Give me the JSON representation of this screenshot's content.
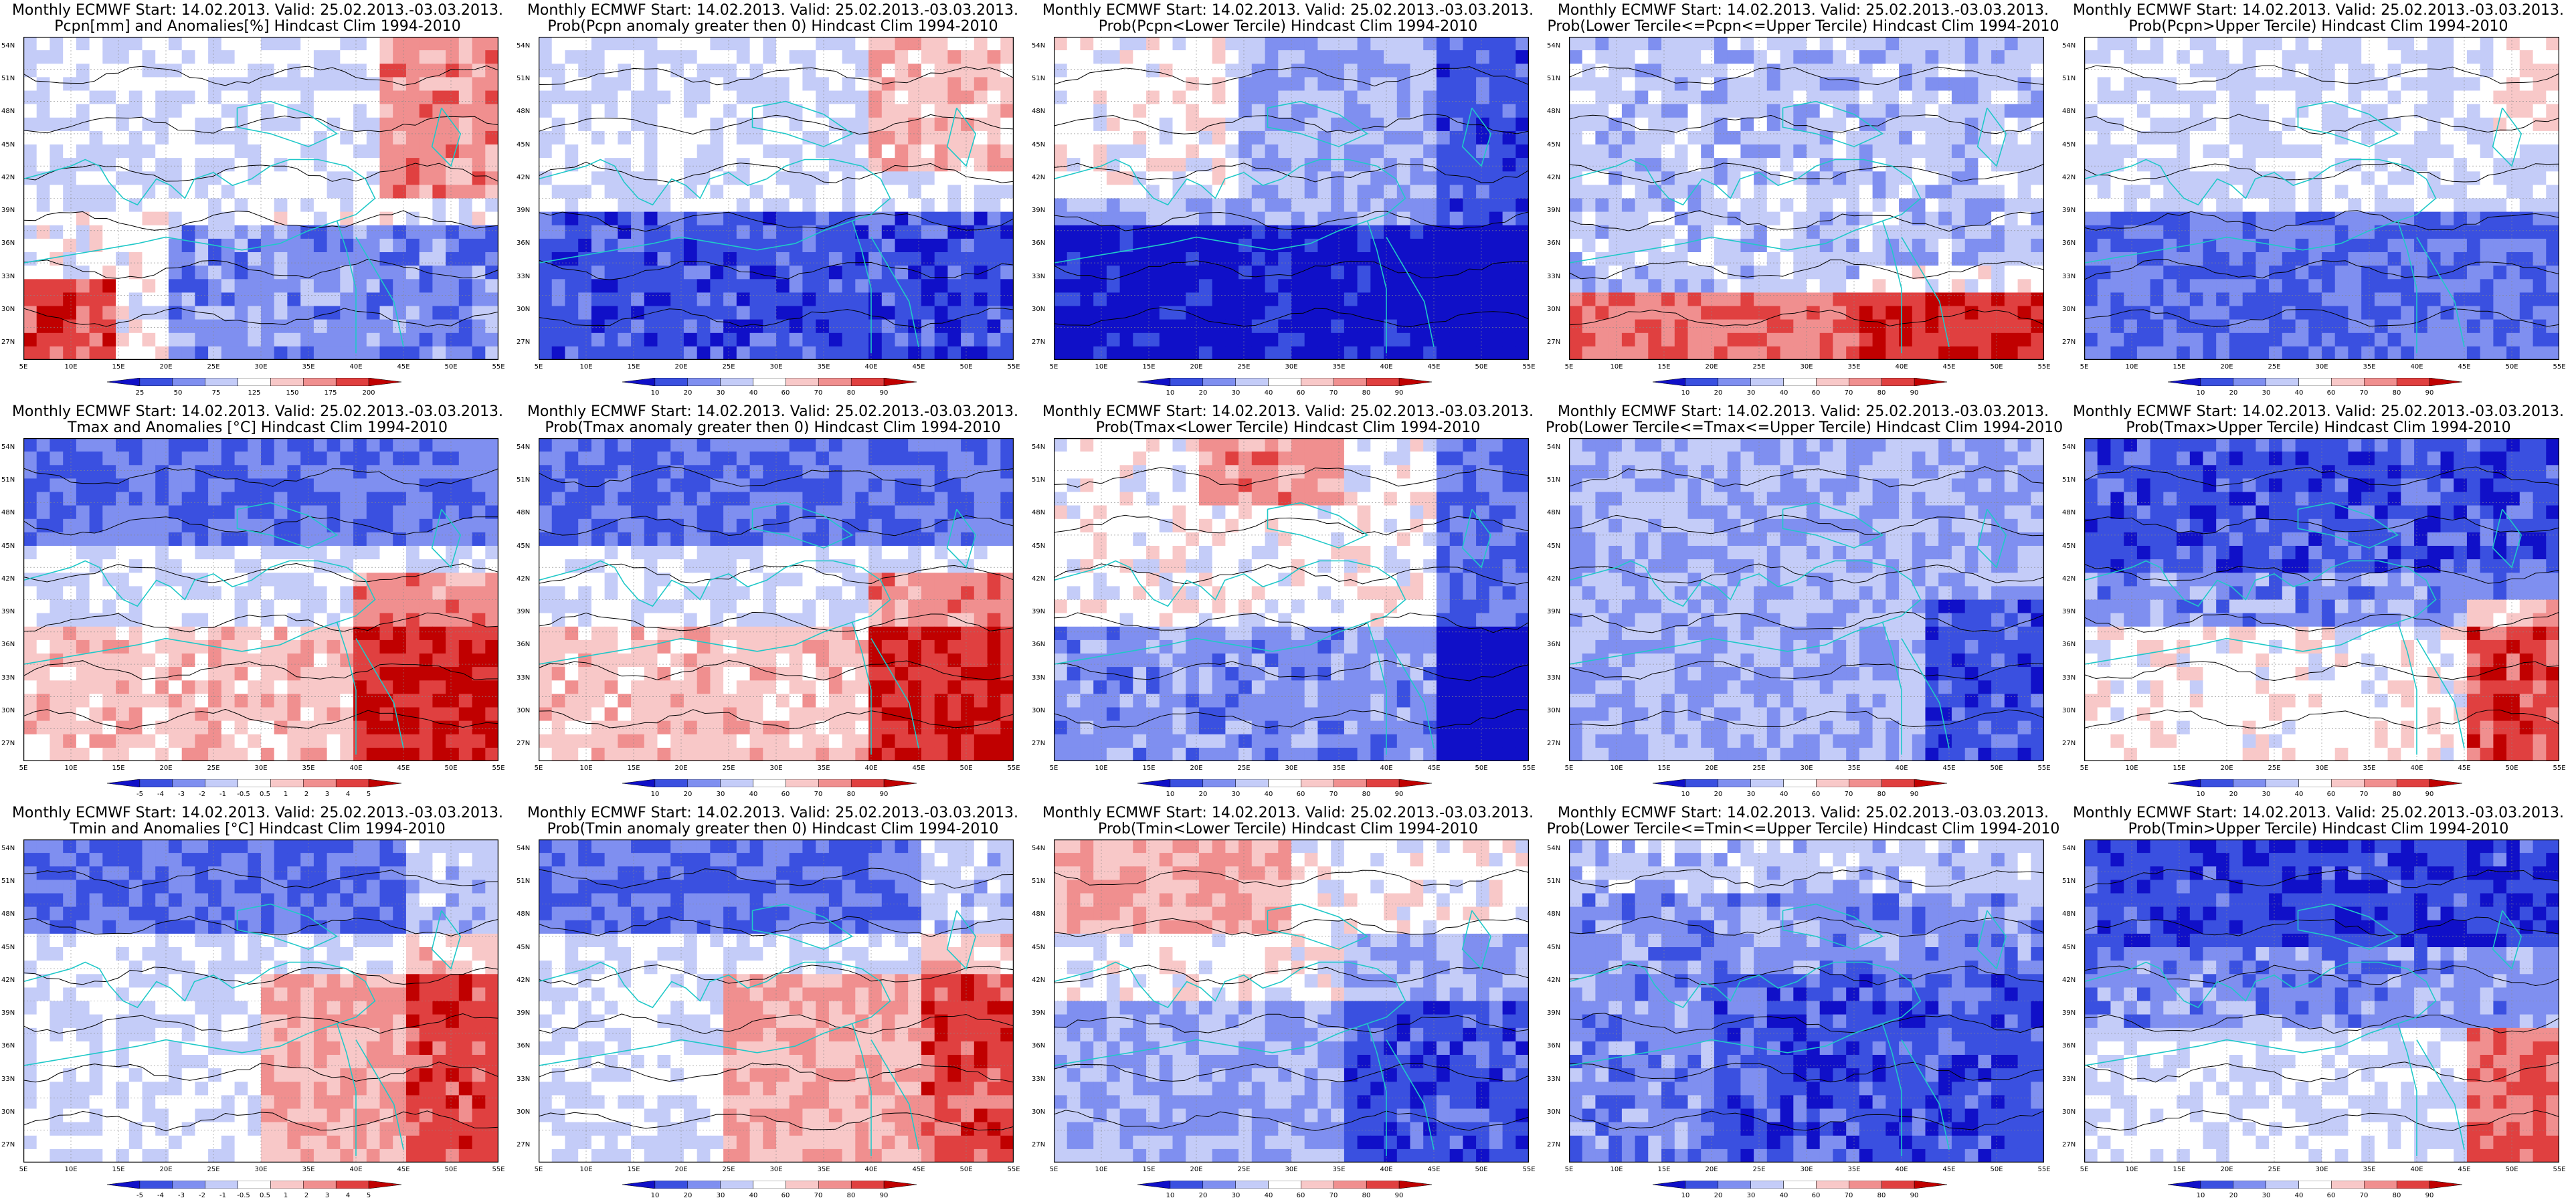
{
  "panels": [
    {
      "t1": "Monthly ECMWF Start: 14.02.2013. Valid: 25.02.2013.-03.03.2013.",
      "t2": "Pcpn[mm] and Anomalies[%] Hindcast Clim 1994-2010",
      "scale": "anom",
      "pattern": "pcpn_anom",
      "colorbar": [
        "25",
        "50",
        "75",
        "125",
        "150",
        "175",
        "200"
      ]
    },
    {
      "t1": "Monthly ECMWF Start: 14.02.2013. Valid: 25.02.2013.-03.03.2013.",
      "t2": "Prob(Pcpn anomaly greater then 0) Hindcast Clim 1994-2010",
      "scale": "prob",
      "pattern": "pcpn_pos",
      "colorbar": [
        "10",
        "20",
        "30",
        "40",
        "60",
        "70",
        "80",
        "90"
      ]
    },
    {
      "t1": "Monthly ECMWF Start: 14.02.2013. Valid: 25.02.2013.-03.03.2013.",
      "t2": "Prob(Pcpn<Lower Tercile) Hindcast Clim 1994-2010",
      "scale": "prob",
      "pattern": "pcpn_low",
      "colorbar": [
        "10",
        "20",
        "30",
        "40",
        "60",
        "70",
        "80",
        "90"
      ]
    },
    {
      "t1": "Monthly ECMWF Start: 14.02.2013. Valid: 25.02.2013.-03.03.2013.",
      "t2": "Prob(Lower Tercile<=Pcpn<=Upper Tercile) Hindcast Clim 1994-2010",
      "scale": "prob",
      "pattern": "pcpn_mid",
      "colorbar": [
        "10",
        "20",
        "30",
        "40",
        "60",
        "70",
        "80",
        "90"
      ]
    },
    {
      "t1": "Monthly ECMWF Start: 14.02.2013. Valid: 25.02.2013.-03.03.2013.",
      "t2": "Prob(Pcpn>Upper Tercile) Hindcast Clim 1994-2010",
      "scale": "prob",
      "pattern": "pcpn_up",
      "colorbar": [
        "10",
        "20",
        "30",
        "40",
        "60",
        "70",
        "80",
        "90"
      ]
    },
    {
      "t1": "Monthly ECMWF Start: 14.02.2013. Valid: 25.02.2013.-03.03.2013.",
      "t2": "Tmax and Anomalies [°C] Hindcast Clim 1994-2010",
      "scale": "anom",
      "pattern": "t_anom",
      "colorbar": [
        "-5",
        "-4",
        "-3",
        "-2",
        "-1",
        "-0.5",
        "0.5",
        "1",
        "2",
        "3",
        "4",
        "5"
      ]
    },
    {
      "t1": "Monthly ECMWF Start: 14.02.2013. Valid: 25.02.2013.-03.03.2013.",
      "t2": "Prob(Tmax anomaly greater then 0) Hindcast Clim 1994-2010",
      "scale": "prob",
      "pattern": "t_pos",
      "colorbar": [
        "10",
        "20",
        "30",
        "40",
        "60",
        "70",
        "80",
        "90"
      ]
    },
    {
      "t1": "Monthly ECMWF Start: 14.02.2013. Valid: 25.02.2013.-03.03.2013.",
      "t2": "Prob(Tmax<Lower Tercile) Hindcast Clim 1994-2010",
      "scale": "prob",
      "pattern": "t_low",
      "colorbar": [
        "10",
        "20",
        "30",
        "40",
        "60",
        "70",
        "80",
        "90"
      ]
    },
    {
      "t1": "Monthly ECMWF Start: 14.02.2013. Valid: 25.02.2013.-03.03.2013.",
      "t2": "Prob(Lower Tercile<=Tmax<=Upper Tercile) Hindcast Clim 1994-2010",
      "scale": "prob",
      "pattern": "t_mid",
      "colorbar": [
        "10",
        "20",
        "30",
        "40",
        "60",
        "70",
        "80",
        "90"
      ]
    },
    {
      "t1": "Monthly ECMWF Start: 14.02.2013. Valid: 25.02.2013.-03.03.2013.",
      "t2": "Prob(Tmax>Upper Tercile) Hindcast Clim 1994-2010",
      "scale": "prob",
      "pattern": "t_up",
      "colorbar": [
        "10",
        "20",
        "30",
        "40",
        "60",
        "70",
        "80",
        "90"
      ]
    },
    {
      "t1": "Monthly ECMWF Start: 14.02.2013. Valid: 25.02.2013.-03.03.2013.",
      "t2": "Tmin and Anomalies [°C] Hindcast Clim 1994-2010",
      "scale": "anom",
      "pattern": "tn_anom",
      "colorbar": [
        "-5",
        "-4",
        "-3",
        "-2",
        "-1",
        "-0.5",
        "0.5",
        "1",
        "2",
        "3",
        "4",
        "5"
      ]
    },
    {
      "t1": "Monthly ECMWF Start: 14.02.2013. Valid: 25.02.2013.-03.03.2013.",
      "t2": "Prob(Tmin anomaly greater then 0) Hindcast Clim 1994-2010",
      "scale": "prob",
      "pattern": "tn_pos",
      "colorbar": [
        "10",
        "20",
        "30",
        "40",
        "60",
        "70",
        "80",
        "90"
      ]
    },
    {
      "t1": "Monthly ECMWF Start: 14.02.2013. Valid: 25.02.2013.-03.03.2013.",
      "t2": "Prob(Tmin<Lower Tercile) Hindcast Clim 1994-2010",
      "scale": "prob",
      "pattern": "tn_low",
      "colorbar": [
        "10",
        "20",
        "30",
        "40",
        "60",
        "70",
        "80",
        "90"
      ]
    },
    {
      "t1": "Monthly ECMWF Start: 14.02.2013. Valid: 25.02.2013.-03.03.2013.",
      "t2": "Prob(Lower Tercile<=Tmin<=Upper Tercile) Hindcast Clim 1994-2010",
      "scale": "prob",
      "pattern": "tn_mid",
      "colorbar": [
        "10",
        "20",
        "30",
        "40",
        "60",
        "70",
        "80",
        "90"
      ]
    },
    {
      "t1": "Monthly ECMWF Start: 14.02.2013. Valid: 25.02.2013.-03.03.2013.",
      "t2": "Prob(Tmin>Upper Tercile) Hindcast Clim 1994-2010",
      "scale": "prob",
      "pattern": "tn_up",
      "colorbar": [
        "10",
        "20",
        "30",
        "40",
        "60",
        "70",
        "80",
        "90"
      ]
    }
  ],
  "lat_labels": [
    "54N",
    "51N",
    "48N",
    "45N",
    "42N",
    "39N",
    "36N",
    "33N",
    "30N",
    "27N"
  ],
  "lon_labels": [
    "5E",
    "10E",
    "15E",
    "20E",
    "25E",
    "30E",
    "35E",
    "40E",
    "45E",
    "50E",
    "55E"
  ],
  "colors": {
    "blue_dark": "#1010c8",
    "blue": "#3a50e0",
    "blue_mid": "#7f8ff0",
    "blue_light": "#c4ccf8",
    "white": "#ffffff",
    "red_light": "#f8c8c8",
    "red_mid": "#f08f8f",
    "red": "#e04040",
    "red_dark": "#c00000",
    "coast": "#20c8c8",
    "contour": "#000000"
  }
}
